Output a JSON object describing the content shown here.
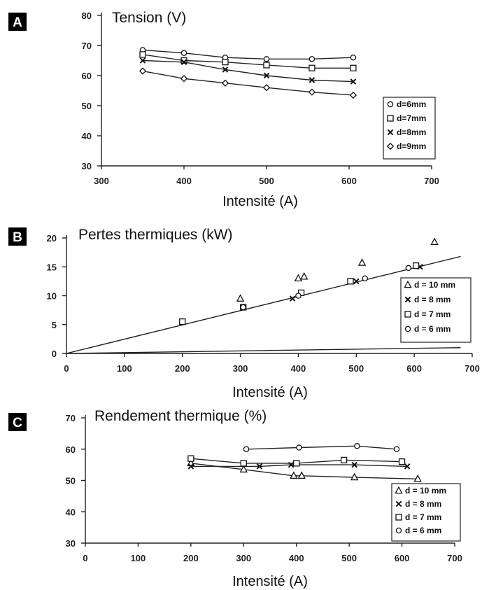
{
  "chart_data": [
    {
      "id": "A",
      "type": "line",
      "panel_label": "A",
      "title": "Tension (V)",
      "xlabel": "Intensité (A)",
      "ylabel": "",
      "xlim": [
        300,
        700
      ],
      "ylim": [
        30,
        80
      ],
      "xticks": [
        "300",
        "400",
        "500",
        "600",
        "700"
      ],
      "yticks": [
        "30",
        "40",
        "50",
        "60",
        "70",
        "80"
      ],
      "legend_position": "right",
      "series": [
        {
          "name": "d=6mm",
          "marker": "circle",
          "x": [
            350,
            400,
            450,
            500,
            555,
            605
          ],
          "y": [
            68.5,
            67.5,
            66,
            65.5,
            65.5,
            66
          ]
        },
        {
          "name": "d=7mm",
          "marker": "square",
          "x": [
            350,
            400,
            450,
            500,
            555,
            605
          ],
          "y": [
            67,
            65,
            64.5,
            63.5,
            62.5,
            62.5
          ]
        },
        {
          "name": "d=8mm",
          "marker": "x",
          "x": [
            350,
            400,
            450,
            500,
            555,
            605
          ],
          "y": [
            65,
            64.5,
            62,
            60,
            58.5,
            58
          ]
        },
        {
          "name": "d=9mm",
          "marker": "diamond",
          "x": [
            350,
            400,
            450,
            500,
            555,
            605
          ],
          "y": [
            61.5,
            59,
            57.5,
            56,
            54.5,
            53.5
          ]
        }
      ]
    },
    {
      "id": "B",
      "type": "scatter",
      "panel_label": "B",
      "title": "Pertes thermiques (kW)",
      "xlabel": "Intensité (A)",
      "ylabel": "",
      "xlim": [
        0,
        700
      ],
      "ylim": [
        0,
        20
      ],
      "xticks": [
        "0",
        "100",
        "200",
        "300",
        "400",
        "500",
        "600",
        "700"
      ],
      "yticks": [
        "0",
        "5",
        "10",
        "15",
        "20"
      ],
      "legend_position": "right",
      "fit_line": {
        "x": [
          0,
          680
        ],
        "y": [
          0,
          16.8
        ]
      },
      "lower_line": {
        "x": [
          0,
          680
        ],
        "y": [
          0,
          1
        ]
      },
      "series": [
        {
          "name": "d = 10 mm",
          "marker": "triangle",
          "x": [
            300,
            400,
            410,
            510,
            635
          ],
          "y": [
            9.5,
            13,
            13.3,
            15.7,
            19.3
          ]
        },
        {
          "name": "d = 8 mm",
          "marker": "x",
          "x": [
            200,
            390,
            500,
            610
          ],
          "y": [
            5.5,
            9.5,
            12.5,
            15
          ]
        },
        {
          "name": "d = 7 mm",
          "marker": "square",
          "x": [
            200,
            305,
            405,
            490,
            603
          ],
          "y": [
            5.5,
            8,
            10.5,
            12.5,
            15.2
          ]
        },
        {
          "name": "d = 6 mm",
          "marker": "circle",
          "x": [
            305,
            400,
            515,
            590
          ],
          "y": [
            8,
            10,
            13,
            14.8
          ]
        }
      ]
    },
    {
      "id": "C",
      "type": "line",
      "panel_label": "C",
      "title": "Rendement thermique (%)",
      "xlabel": "Intensité (A)",
      "ylabel": "",
      "xlim": [
        0,
        700
      ],
      "ylim": [
        30,
        70
      ],
      "xticks": [
        "0",
        "100",
        "200",
        "300",
        "400",
        "500",
        "600",
        "700"
      ],
      "yticks": [
        "30",
        "40",
        "50",
        "60",
        "70"
      ],
      "legend_position": "right",
      "series": [
        {
          "name": "d = 10 mm",
          "marker": "triangle",
          "x": [
            200,
            300,
            395,
            410,
            510,
            630
          ],
          "y": [
            55.5,
            53.5,
            51.5,
            51.5,
            51,
            50.5
          ]
        },
        {
          "name": "d = 8 mm",
          "marker": "x",
          "x": [
            200,
            330,
            390,
            510,
            610
          ],
          "y": [
            54.5,
            54.5,
            55,
            55,
            54.5
          ]
        },
        {
          "name": "d = 7 mm",
          "marker": "square",
          "x": [
            200,
            300,
            400,
            490,
            600
          ],
          "y": [
            57,
            55.5,
            55.5,
            56.5,
            56
          ]
        },
        {
          "name": "d = 6 mm",
          "marker": "circle",
          "x": [
            305,
            405,
            515,
            590
          ],
          "y": [
            60,
            60.5,
            61,
            60
          ]
        }
      ]
    }
  ]
}
